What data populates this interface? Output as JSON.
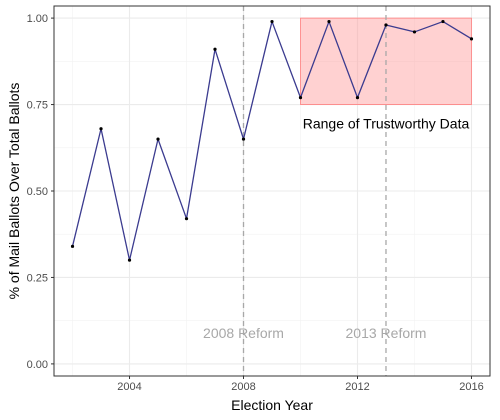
{
  "chart_data": {
    "type": "line",
    "xlabel": "Election Year",
    "ylabel": "% of Mail Ballots Over Total Ballots",
    "xlim": [
      2001.35,
      2016.65
    ],
    "ylim": [
      -0.035,
      1.035
    ],
    "x_ticks": [
      2004,
      2008,
      2012,
      2016
    ],
    "x_minor_ticks": [
      2002,
      2006,
      2010,
      2014
    ],
    "y_ticks": [
      0.0,
      0.25,
      0.5,
      0.75,
      1.0
    ],
    "y_tick_labels": [
      "0.00",
      "0.25",
      "0.50",
      "0.75",
      "1.00"
    ],
    "y_minor_ticks": [
      0.125,
      0.375,
      0.625,
      0.875
    ],
    "grid": true,
    "legend": "none",
    "series": [
      {
        "x": [
          2002,
          2003,
          2004,
          2005,
          2006,
          2007,
          2008,
          2009,
          2010,
          2011,
          2012,
          2013,
          2014,
          2015,
          2016
        ],
        "values": [
          0.34,
          0.68,
          0.3,
          0.65,
          0.42,
          0.91,
          0.65,
          0.99,
          0.77,
          0.99,
          0.77,
          0.98,
          0.96,
          0.99,
          0.94
        ],
        "color": "#3b3b8f"
      }
    ],
    "highlight_region": {
      "x": [
        2010,
        2016
      ],
      "y": [
        0.75,
        1.0
      ],
      "label": "Range of Trustworthy Data",
      "fill": "#ff9a9a",
      "stroke": "#ff7f7f"
    },
    "reference_lines": [
      {
        "x": 2008,
        "label": "2008 Reform"
      },
      {
        "x": 2013,
        "label": "2013 Reform"
      }
    ],
    "reference_line_color": "#a8a8a8",
    "reference_label_y": 0.09
  }
}
